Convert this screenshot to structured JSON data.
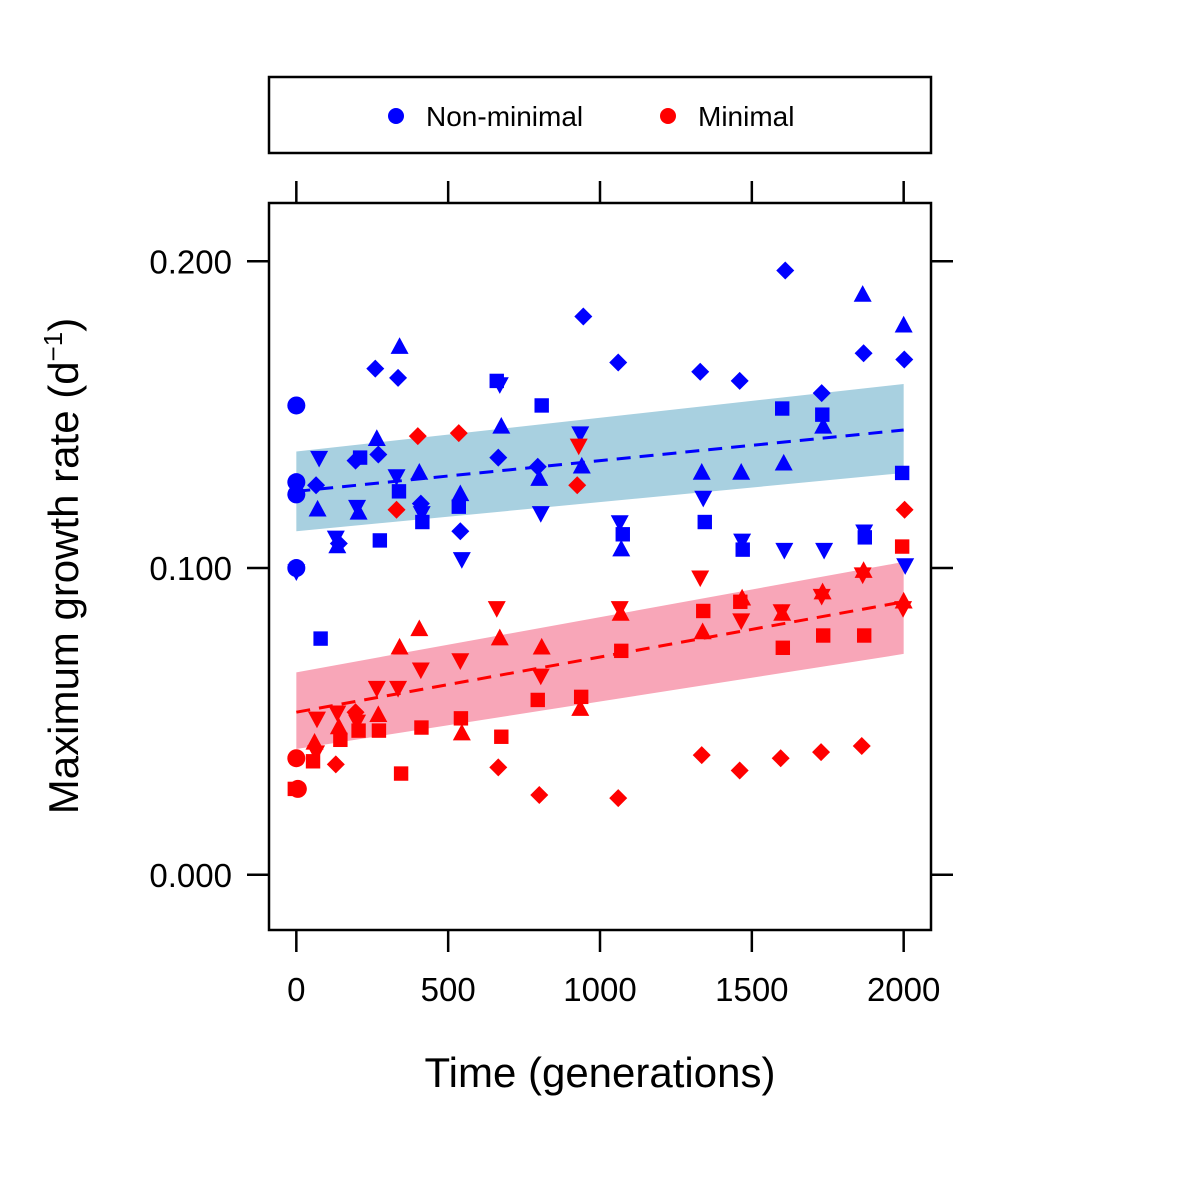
{
  "chart_data": {
    "type": "scatter",
    "xlabel": "Time (generations)",
    "ylabel": "Maximum growth rate (d",
    "ylabel_sup": "−1",
    "ylabel_close": ")",
    "xlim": [
      -90,
      2090
    ],
    "ylim": [
      -0.018,
      0.219
    ],
    "xticks": [
      0,
      500,
      1000,
      1500,
      2000
    ],
    "xtick_labels": [
      "0",
      "500",
      "1000",
      "1500",
      "2000"
    ],
    "yticks": [
      0.0,
      0.1,
      0.2
    ],
    "ytick_labels": [
      "0.000",
      "0.100",
      "0.200"
    ],
    "grid": false,
    "legend": {
      "placement": "top",
      "entries": [
        {
          "label": "Non-minimal",
          "color": "#0000ff"
        },
        {
          "label": "Minimal",
          "color": "#ff0000"
        }
      ]
    },
    "series": [
      {
        "group": "Non-minimal",
        "color": "#0000ff",
        "band_color": "#a8d0e0",
        "fit": {
          "x": [
            0,
            2000
          ],
          "y": [
            0.125,
            0.145
          ],
          "lower": [
            0.112,
            0.131
          ],
          "upper": [
            0.138,
            0.16
          ]
        },
        "points": [
          {
            "x": 0,
            "y": 0.153,
            "shape": "circle"
          },
          {
            "x": 0,
            "y": 0.128,
            "shape": "circle"
          },
          {
            "x": 0,
            "y": 0.124,
            "shape": "circle"
          },
          {
            "x": 0,
            "y": 0.1,
            "shape": "circle"
          },
          {
            "x": 0,
            "y": 0.099,
            "shape": "triangle-down"
          },
          {
            "x": 65,
            "y": 0.127,
            "shape": "diamond"
          },
          {
            "x": 70,
            "y": 0.119,
            "shape": "triangle"
          },
          {
            "x": 75,
            "y": 0.136,
            "shape": "triangle-down"
          },
          {
            "x": 80,
            "y": 0.077,
            "shape": "square"
          },
          {
            "x": 130,
            "y": 0.11,
            "shape": "triangle-down"
          },
          {
            "x": 135,
            "y": 0.107,
            "shape": "triangle"
          },
          {
            "x": 140,
            "y": 0.108,
            "shape": "diamond"
          },
          {
            "x": 195,
            "y": 0.135,
            "shape": "diamond"
          },
          {
            "x": 200,
            "y": 0.12,
            "shape": "triangle-down"
          },
          {
            "x": 205,
            "y": 0.118,
            "shape": "triangle"
          },
          {
            "x": 210,
            "y": 0.136,
            "shape": "square"
          },
          {
            "x": 260,
            "y": 0.165,
            "shape": "diamond"
          },
          {
            "x": 265,
            "y": 0.142,
            "shape": "triangle"
          },
          {
            "x": 270,
            "y": 0.137,
            "shape": "diamond"
          },
          {
            "x": 275,
            "y": 0.109,
            "shape": "square"
          },
          {
            "x": 335,
            "y": 0.162,
            "shape": "diamond"
          },
          {
            "x": 340,
            "y": 0.172,
            "shape": "triangle"
          },
          {
            "x": 330,
            "y": 0.13,
            "shape": "triangle-down"
          },
          {
            "x": 338,
            "y": 0.125,
            "shape": "square"
          },
          {
            "x": 405,
            "y": 0.131,
            "shape": "triangle"
          },
          {
            "x": 410,
            "y": 0.121,
            "shape": "diamond"
          },
          {
            "x": 413,
            "y": 0.118,
            "shape": "triangle-down"
          },
          {
            "x": 415,
            "y": 0.115,
            "shape": "square"
          },
          {
            "x": 535,
            "y": 0.12,
            "shape": "square"
          },
          {
            "x": 540,
            "y": 0.124,
            "shape": "triangle"
          },
          {
            "x": 540,
            "y": 0.112,
            "shape": "diamond"
          },
          {
            "x": 545,
            "y": 0.103,
            "shape": "triangle-down"
          },
          {
            "x": 660,
            "y": 0.161,
            "shape": "square"
          },
          {
            "x": 665,
            "y": 0.136,
            "shape": "diamond"
          },
          {
            "x": 670,
            "y": 0.16,
            "shape": "triangle-down"
          },
          {
            "x": 675,
            "y": 0.146,
            "shape": "triangle"
          },
          {
            "x": 795,
            "y": 0.133,
            "shape": "diamond"
          },
          {
            "x": 800,
            "y": 0.129,
            "shape": "triangle"
          },
          {
            "x": 805,
            "y": 0.118,
            "shape": "triangle-down"
          },
          {
            "x": 808,
            "y": 0.153,
            "shape": "square"
          },
          {
            "x": 935,
            "y": 0.144,
            "shape": "triangle-down"
          },
          {
            "x": 940,
            "y": 0.133,
            "shape": "triangle"
          },
          {
            "x": 945,
            "y": 0.182,
            "shape": "diamond"
          },
          {
            "x": 1060,
            "y": 0.167,
            "shape": "diamond"
          },
          {
            "x": 1065,
            "y": 0.115,
            "shape": "triangle-down"
          },
          {
            "x": 1070,
            "y": 0.106,
            "shape": "triangle"
          },
          {
            "x": 1075,
            "y": 0.111,
            "shape": "square"
          },
          {
            "x": 1330,
            "y": 0.164,
            "shape": "diamond"
          },
          {
            "x": 1335,
            "y": 0.131,
            "shape": "triangle"
          },
          {
            "x": 1340,
            "y": 0.123,
            "shape": "triangle-down"
          },
          {
            "x": 1345,
            "y": 0.115,
            "shape": "square"
          },
          {
            "x": 1460,
            "y": 0.161,
            "shape": "diamond"
          },
          {
            "x": 1465,
            "y": 0.131,
            "shape": "triangle"
          },
          {
            "x": 1468,
            "y": 0.109,
            "shape": "triangle-down"
          },
          {
            "x": 1470,
            "y": 0.106,
            "shape": "square"
          },
          {
            "x": 1600,
            "y": 0.152,
            "shape": "square"
          },
          {
            "x": 1605,
            "y": 0.134,
            "shape": "triangle"
          },
          {
            "x": 1607,
            "y": 0.106,
            "shape": "triangle-down"
          },
          {
            "x": 1610,
            "y": 0.197,
            "shape": "diamond"
          },
          {
            "x": 1730,
            "y": 0.157,
            "shape": "diamond"
          },
          {
            "x": 1732,
            "y": 0.15,
            "shape": "square"
          },
          {
            "x": 1735,
            "y": 0.146,
            "shape": "triangle"
          },
          {
            "x": 1738,
            "y": 0.106,
            "shape": "triangle-down"
          },
          {
            "x": 1865,
            "y": 0.189,
            "shape": "triangle"
          },
          {
            "x": 1868,
            "y": 0.17,
            "shape": "diamond"
          },
          {
            "x": 1870,
            "y": 0.112,
            "shape": "triangle-down"
          },
          {
            "x": 1872,
            "y": 0.11,
            "shape": "square"
          },
          {
            "x": 1995,
            "y": 0.131,
            "shape": "square"
          },
          {
            "x": 2000,
            "y": 0.179,
            "shape": "triangle"
          },
          {
            "x": 2002,
            "y": 0.168,
            "shape": "diamond"
          },
          {
            "x": 2005,
            "y": 0.101,
            "shape": "triangle-down"
          }
        ]
      },
      {
        "group": "Minimal",
        "color": "#ff0000",
        "band_color": "#f8a6b8",
        "fit": {
          "x": [
            0,
            2000
          ],
          "y": [
            0.053,
            0.089
          ],
          "lower": [
            0.041,
            0.072
          ],
          "upper": [
            0.066,
            0.102
          ]
        },
        "points": [
          {
            "x": 0,
            "y": 0.038,
            "shape": "circle"
          },
          {
            "x": -5,
            "y": 0.028,
            "shape": "square"
          },
          {
            "x": 5,
            "y": 0.028,
            "shape": "circle"
          },
          {
            "x": 60,
            "y": 0.043,
            "shape": "triangle"
          },
          {
            "x": 65,
            "y": 0.04,
            "shape": "triangle-down"
          },
          {
            "x": 68,
            "y": 0.051,
            "shape": "triangle-down"
          },
          {
            "x": 55,
            "y": 0.037,
            "shape": "square"
          },
          {
            "x": 130,
            "y": 0.036,
            "shape": "diamond"
          },
          {
            "x": 135,
            "y": 0.053,
            "shape": "triangle-down"
          },
          {
            "x": 140,
            "y": 0.048,
            "shape": "triangle"
          },
          {
            "x": 145,
            "y": 0.044,
            "shape": "square"
          },
          {
            "x": 195,
            "y": 0.053,
            "shape": "diamond"
          },
          {
            "x": 200,
            "y": 0.05,
            "shape": "triangle-down"
          },
          {
            "x": 205,
            "y": 0.047,
            "shape": "square"
          },
          {
            "x": 265,
            "y": 0.061,
            "shape": "triangle-down"
          },
          {
            "x": 270,
            "y": 0.052,
            "shape": "triangle"
          },
          {
            "x": 272,
            "y": 0.047,
            "shape": "square"
          },
          {
            "x": 330,
            "y": 0.119,
            "shape": "diamond"
          },
          {
            "x": 335,
            "y": 0.061,
            "shape": "triangle-down"
          },
          {
            "x": 340,
            "y": 0.074,
            "shape": "triangle"
          },
          {
            "x": 345,
            "y": 0.033,
            "shape": "square"
          },
          {
            "x": 400,
            "y": 0.143,
            "shape": "diamond"
          },
          {
            "x": 405,
            "y": 0.08,
            "shape": "triangle"
          },
          {
            "x": 410,
            "y": 0.067,
            "shape": "triangle-down"
          },
          {
            "x": 412,
            "y": 0.048,
            "shape": "square"
          },
          {
            "x": 535,
            "y": 0.144,
            "shape": "diamond"
          },
          {
            "x": 540,
            "y": 0.07,
            "shape": "triangle-down"
          },
          {
            "x": 542,
            "y": 0.051,
            "shape": "square"
          },
          {
            "x": 545,
            "y": 0.046,
            "shape": "triangle"
          },
          {
            "x": 660,
            "y": 0.087,
            "shape": "triangle-down"
          },
          {
            "x": 665,
            "y": 0.035,
            "shape": "diamond"
          },
          {
            "x": 670,
            "y": 0.077,
            "shape": "triangle"
          },
          {
            "x": 675,
            "y": 0.045,
            "shape": "square"
          },
          {
            "x": 795,
            "y": 0.057,
            "shape": "square"
          },
          {
            "x": 800,
            "y": 0.026,
            "shape": "diamond"
          },
          {
            "x": 805,
            "y": 0.065,
            "shape": "triangle-down"
          },
          {
            "x": 808,
            "y": 0.074,
            "shape": "triangle"
          },
          {
            "x": 925,
            "y": 0.127,
            "shape": "diamond"
          },
          {
            "x": 930,
            "y": 0.14,
            "shape": "triangle-down"
          },
          {
            "x": 935,
            "y": 0.054,
            "shape": "triangle"
          },
          {
            "x": 938,
            "y": 0.058,
            "shape": "square"
          },
          {
            "x": 1060,
            "y": 0.025,
            "shape": "diamond"
          },
          {
            "x": 1065,
            "y": 0.087,
            "shape": "triangle-down"
          },
          {
            "x": 1068,
            "y": 0.085,
            "shape": "triangle"
          },
          {
            "x": 1070,
            "y": 0.073,
            "shape": "square"
          },
          {
            "x": 1330,
            "y": 0.097,
            "shape": "triangle-down"
          },
          {
            "x": 1335,
            "y": 0.039,
            "shape": "diamond"
          },
          {
            "x": 1338,
            "y": 0.079,
            "shape": "triangle"
          },
          {
            "x": 1340,
            "y": 0.086,
            "shape": "square"
          },
          {
            "x": 1460,
            "y": 0.034,
            "shape": "diamond"
          },
          {
            "x": 1462,
            "y": 0.089,
            "shape": "square"
          },
          {
            "x": 1465,
            "y": 0.083,
            "shape": "triangle-down"
          },
          {
            "x": 1468,
            "y": 0.09,
            "shape": "triangle"
          },
          {
            "x": 1595,
            "y": 0.038,
            "shape": "diamond"
          },
          {
            "x": 1598,
            "y": 0.086,
            "shape": "triangle-down"
          },
          {
            "x": 1600,
            "y": 0.085,
            "shape": "triangle"
          },
          {
            "x": 1602,
            "y": 0.074,
            "shape": "square"
          },
          {
            "x": 1728,
            "y": 0.04,
            "shape": "diamond"
          },
          {
            "x": 1730,
            "y": 0.091,
            "shape": "triangle-down"
          },
          {
            "x": 1733,
            "y": 0.092,
            "shape": "triangle"
          },
          {
            "x": 1735,
            "y": 0.078,
            "shape": "square"
          },
          {
            "x": 1862,
            "y": 0.042,
            "shape": "diamond"
          },
          {
            "x": 1865,
            "y": 0.098,
            "shape": "triangle-down"
          },
          {
            "x": 1868,
            "y": 0.099,
            "shape": "triangle"
          },
          {
            "x": 1870,
            "y": 0.078,
            "shape": "square"
          },
          {
            "x": 1995,
            "y": 0.107,
            "shape": "square"
          },
          {
            "x": 1998,
            "y": 0.087,
            "shape": "triangle-down"
          },
          {
            "x": 2000,
            "y": 0.089,
            "shape": "triangle"
          },
          {
            "x": 2003,
            "y": 0.119,
            "shape": "diamond"
          }
        ]
      }
    ]
  }
}
